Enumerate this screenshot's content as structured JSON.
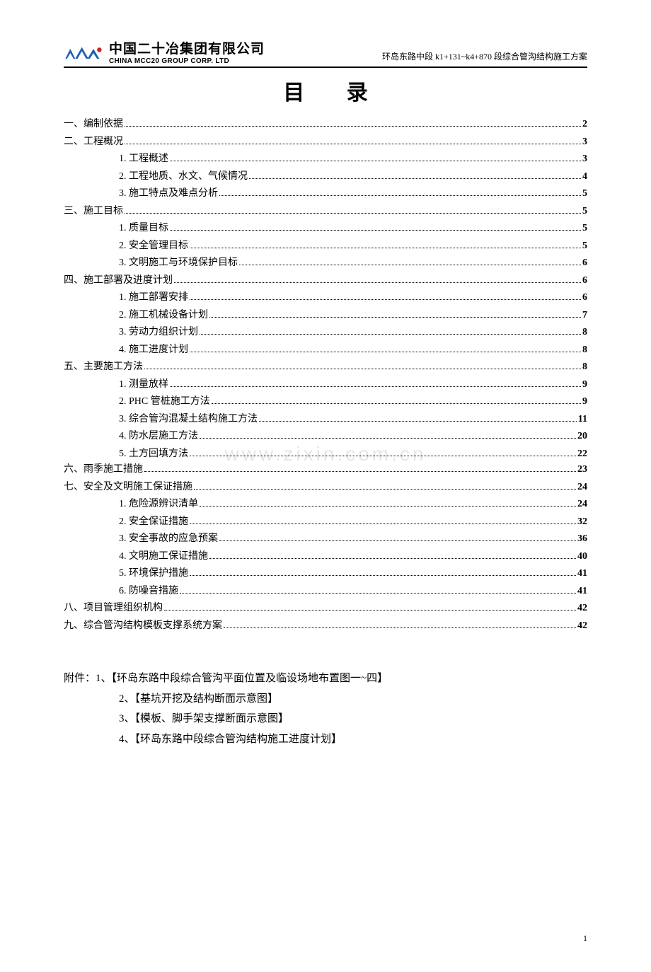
{
  "header": {
    "company_cn": "中国二十冶集团有限公司",
    "company_en": "CHINA MCC20 GROUP CORP. LTD",
    "doc_title": "环岛东路中段 k1+131~k4+870 段综合管沟结构施工方案"
  },
  "title": "目 录",
  "toc": [
    {
      "level": 1,
      "label": "一、编制依据",
      "page": "2"
    },
    {
      "level": 1,
      "label": "二、工程概况",
      "page": "3"
    },
    {
      "level": 2,
      "label": "1. 工程概述",
      "page": "3"
    },
    {
      "level": 2,
      "label": "2. 工程地质、水文、气候情况",
      "page": "4"
    },
    {
      "level": 2,
      "label": "3. 施工特点及难点分析",
      "page": "5"
    },
    {
      "level": 1,
      "label": "三、施工目标",
      "page": "5"
    },
    {
      "level": 2,
      "label": "1. 质量目标",
      "page": "5"
    },
    {
      "level": 2,
      "label": "2. 安全管理目标",
      "page": "5"
    },
    {
      "level": 2,
      "label": "3. 文明施工与环境保护目标",
      "page": "6"
    },
    {
      "level": 1,
      "label": "四、施工部署及进度计划",
      "page": "6"
    },
    {
      "level": 2,
      "label": "1. 施工部署安排",
      "page": "6"
    },
    {
      "level": 2,
      "label": "2. 施工机械设备计划",
      "page": "7"
    },
    {
      "level": 2,
      "label": "3. 劳动力组织计划",
      "page": "8"
    },
    {
      "level": 2,
      "label": "4. 施工进度计划",
      "page": "8"
    },
    {
      "level": 1,
      "label": "五、主要施工方法",
      "page": "8"
    },
    {
      "level": 2,
      "label": "1. 测量放样",
      "page": "9"
    },
    {
      "level": 2,
      "label": "2. PHC 管桩施工方法",
      "page": "9"
    },
    {
      "level": 2,
      "label": "3. 综合管沟混凝土结构施工方法",
      "page": "11"
    },
    {
      "level": 2,
      "label": "4. 防水层施工方法",
      "page": "20"
    },
    {
      "level": 2,
      "label": "5. 土方回填方法",
      "page": "22"
    },
    {
      "level": 1,
      "label": "六、雨季施工措施",
      "page": "23"
    },
    {
      "level": 1,
      "label": "七、安全及文明施工保证措施",
      "page": "24"
    },
    {
      "level": 2,
      "label": "1. 危险源辨识清单",
      "page": "24"
    },
    {
      "level": 2,
      "label": "2. 安全保证措施",
      "page": "32"
    },
    {
      "level": 2,
      "label": "3. 安全事故的应急预案",
      "page": "36"
    },
    {
      "level": 2,
      "label": "4. 文明施工保证措施",
      "page": "40"
    },
    {
      "level": 2,
      "label": "5. 环境保护措施",
      "page": "41"
    },
    {
      "level": 2,
      "label": "6. 防噪音措施",
      "page": "41"
    },
    {
      "level": 1,
      "label": "八、项目管理组织机构",
      "page": "42"
    },
    {
      "level": 1,
      "label": "九、综合管沟结构模板支撑系统方案",
      "page": "42"
    }
  ],
  "watermark": "www.zixin.com.cn",
  "attachments": {
    "head": "附件：",
    "items": [
      "1、【环岛东路中段综合管沟平面位置及临设场地布置图一~四】",
      "2、【基坑开挖及结构断面示意图】",
      "3、【模板、脚手架支撑断面示意图】",
      "4、【环岛东路中段综合管沟结构施工进度计划】"
    ]
  },
  "page_number": "1",
  "colors": {
    "logo_blue": "#1f5fb0",
    "logo_red": "#c62828",
    "text": "#000000",
    "watermark": "rgba(0,0,0,0.10)"
  }
}
